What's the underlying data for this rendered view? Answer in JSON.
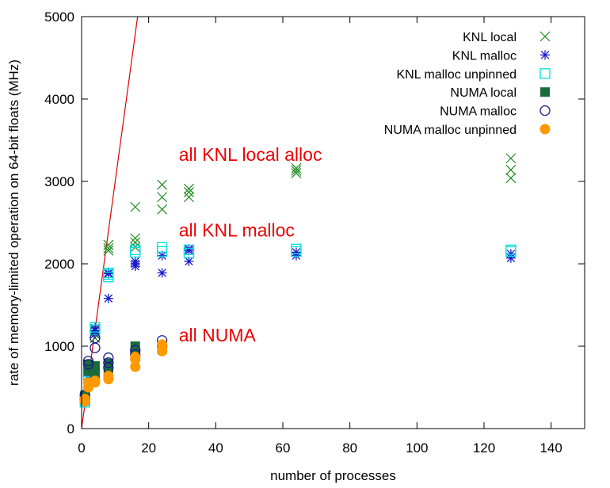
{
  "chart_data": {
    "type": "scatter",
    "title": "",
    "xlabel": "number of processes",
    "ylabel": "rate of memory-limited operation on 64-bit floats (MHz)",
    "xlim": [
      0,
      150
    ],
    "ylim": [
      0,
      5000
    ],
    "xticks": [
      0,
      20,
      40,
      60,
      80,
      100,
      120,
      140
    ],
    "yticks": [
      0,
      1000,
      2000,
      3000,
      4000,
      5000
    ],
    "grid": false,
    "legend_position": "top-right",
    "reference_line": {
      "x": [
        0,
        16.7
      ],
      "y": [
        0,
        5000
      ],
      "color": "#dd0000"
    },
    "annotations": [
      {
        "text": "all KNL local alloc",
        "x": 29,
        "y": 3250
      },
      {
        "text": "all KNL malloc",
        "x": 29,
        "y": 2330
      },
      {
        "text": "all NUMA",
        "x": 29,
        "y": 1060
      }
    ],
    "series": [
      {
        "name": "KNL local",
        "marker": "x",
        "color": "#1e8a1e",
        "points": [
          [
            1,
            340
          ],
          [
            1,
            360
          ],
          [
            1,
            380
          ],
          [
            2,
            640
          ],
          [
            2,
            700
          ],
          [
            2,
            760
          ],
          [
            4,
            1100
          ],
          [
            4,
            1150
          ],
          [
            4,
            1200
          ],
          [
            8,
            2160
          ],
          [
            8,
            2190
          ],
          [
            8,
            2230
          ],
          [
            16,
            2200
          ],
          [
            16,
            2260
          ],
          [
            16,
            2310
          ],
          [
            16,
            2690
          ],
          [
            24,
            2660
          ],
          [
            24,
            2810
          ],
          [
            24,
            2960
          ],
          [
            32,
            2810
          ],
          [
            32,
            2870
          ],
          [
            32,
            2910
          ],
          [
            64,
            3100
          ],
          [
            64,
            3130
          ],
          [
            64,
            3160
          ],
          [
            128,
            3040
          ],
          [
            128,
            3140
          ],
          [
            128,
            3280
          ]
        ]
      },
      {
        "name": "KNL malloc",
        "marker": "asterisk",
        "color": "#1a1acc",
        "points": [
          [
            1,
            330
          ],
          [
            1,
            350
          ],
          [
            2,
            640
          ],
          [
            2,
            680
          ],
          [
            4,
            1150
          ],
          [
            4,
            1190
          ],
          [
            4,
            1220
          ],
          [
            8,
            1580
          ],
          [
            8,
            1880
          ],
          [
            8,
            1890
          ],
          [
            16,
            1970
          ],
          [
            16,
            2000
          ],
          [
            16,
            2030
          ],
          [
            24,
            1890
          ],
          [
            24,
            2100
          ],
          [
            32,
            2030
          ],
          [
            32,
            2160
          ],
          [
            32,
            2180
          ],
          [
            64,
            2100
          ],
          [
            64,
            2140
          ],
          [
            128,
            2070
          ],
          [
            128,
            2120
          ]
        ]
      },
      {
        "name": "KNL malloc unpinned",
        "marker": "open-square",
        "color": "#00dddd",
        "points": [
          [
            1,
            320
          ],
          [
            1,
            340
          ],
          [
            2,
            660
          ],
          [
            2,
            690
          ],
          [
            4,
            1200
          ],
          [
            4,
            1230
          ],
          [
            8,
            1840
          ],
          [
            8,
            1870
          ],
          [
            8,
            1890
          ],
          [
            16,
            2140
          ],
          [
            16,
            2170
          ],
          [
            24,
            2150
          ],
          [
            24,
            2200
          ],
          [
            32,
            2130
          ],
          [
            32,
            2170
          ],
          [
            64,
            2150
          ],
          [
            64,
            2180
          ],
          [
            128,
            2150
          ],
          [
            128,
            2170
          ]
        ]
      },
      {
        "name": "NUMA local",
        "marker": "filled-square",
        "color": "#1a6b3a",
        "points": [
          [
            1,
            380
          ],
          [
            1,
            400
          ],
          [
            2,
            700
          ],
          [
            2,
            740
          ],
          [
            2,
            780
          ],
          [
            4,
            640
          ],
          [
            4,
            700
          ],
          [
            4,
            760
          ],
          [
            8,
            680
          ],
          [
            8,
            740
          ],
          [
            8,
            790
          ],
          [
            16,
            880
          ],
          [
            16,
            940
          ],
          [
            16,
            1000
          ],
          [
            24,
            960
          ],
          [
            24,
            1000
          ]
        ]
      },
      {
        "name": "NUMA malloc",
        "marker": "open-circle",
        "color": "#1a1a8c",
        "points": [
          [
            1,
            360
          ],
          [
            1,
            410
          ],
          [
            2,
            780
          ],
          [
            2,
            820
          ],
          [
            4,
            980
          ],
          [
            4,
            1100
          ],
          [
            8,
            740
          ],
          [
            8,
            800
          ],
          [
            8,
            860
          ],
          [
            16,
            900
          ],
          [
            16,
            950
          ],
          [
            24,
            1000
          ],
          [
            24,
            1070
          ]
        ]
      },
      {
        "name": "NUMA malloc unpinned",
        "marker": "filled-circle",
        "color": "#ff9900",
        "points": [
          [
            1,
            330
          ],
          [
            1,
            360
          ],
          [
            2,
            500
          ],
          [
            2,
            560
          ],
          [
            4,
            560
          ],
          [
            4,
            580
          ],
          [
            8,
            600
          ],
          [
            8,
            640
          ],
          [
            16,
            750
          ],
          [
            16,
            840
          ],
          [
            16,
            870
          ],
          [
            24,
            940
          ],
          [
            24,
            980
          ],
          [
            24,
            1020
          ]
        ]
      }
    ]
  }
}
